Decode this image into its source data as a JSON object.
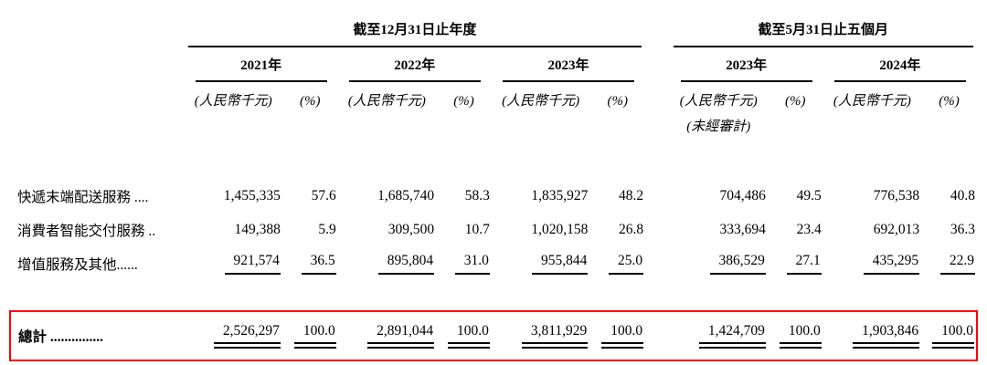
{
  "page": {
    "background": "#ffffff",
    "highlight_color": "#ff0000"
  },
  "table": {
    "col_groups": [
      {
        "label": "截至12月31日止年度"
      },
      {
        "label": "截至5月31日止五個月"
      }
    ],
    "year_headers": [
      "2021年",
      "2022年",
      "2023年",
      "2023年",
      "2024年"
    ],
    "unit_header": "(人民幣千元)",
    "percent_header": "(%)",
    "unaudited_note": "(未經審計)",
    "rows": [
      {
        "label": "快遞末端配送服務 ....",
        "values": [
          "1,455,335",
          "57.6",
          "1,685,740",
          "58.3",
          "1,835,927",
          "48.2",
          "704,486",
          "49.5",
          "776,538",
          "40.8"
        ]
      },
      {
        "label": "消費者智能交付服務 ..",
        "values": [
          "149,388",
          "5.9",
          "309,500",
          "10.7",
          "1,020,158",
          "26.8",
          "333,694",
          "23.4",
          "692,013",
          "36.3"
        ]
      },
      {
        "label": "增值服務及其他......",
        "values": [
          "921,574",
          "36.5",
          "895,804",
          "31.0",
          "955,844",
          "25.0",
          "386,529",
          "27.1",
          "435,295",
          "22.9"
        ]
      },
      {
        "label": "總計 ...............",
        "values": [
          "2,526,297",
          "100.0",
          "2,891,044",
          "100.0",
          "3,811,929",
          "100.0",
          "1,424,709",
          "100.0",
          "1,903,846",
          "100.0"
        ]
      }
    ]
  }
}
